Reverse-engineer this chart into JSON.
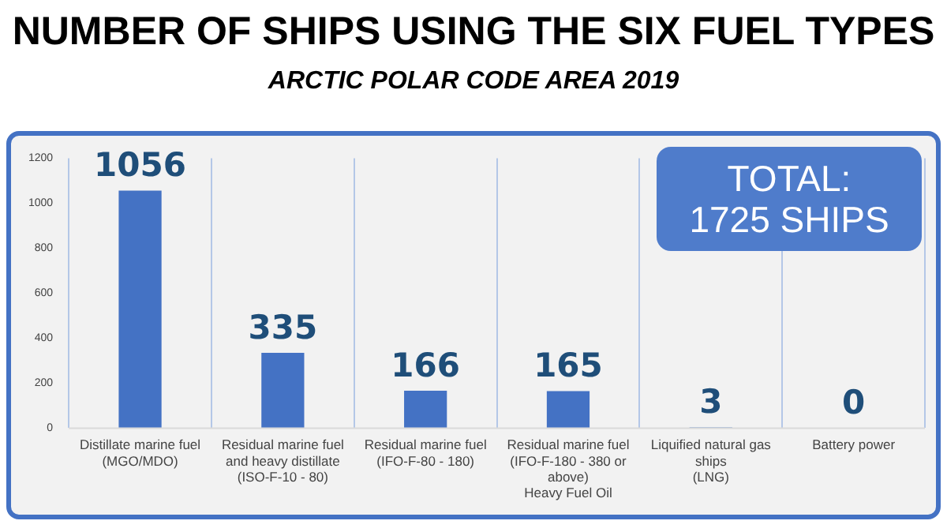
{
  "chart_data": {
    "type": "bar",
    "title": "NUMBER OF SHIPS USING THE SIX FUEL TYPES",
    "subtitle": "ARCTIC POLAR CODE AREA 2019",
    "categories": [
      "Distillate marine fuel\n(MGO/MDO)",
      "Residual marine fuel\nand heavy distillate\n(ISO-F-10 - 80)",
      "Residual marine fuel\n(IFO-F-80 - 180)",
      "Residual marine fuel\n(IFO-F-180 - 380 or\nabove)\nHeavy Fuel Oil",
      "Liquified natural gas\nships\n(LNG)",
      "Battery power"
    ],
    "values": [
      1056,
      335,
      166,
      165,
      3,
      0
    ],
    "color": "#4472c4",
    "ylim": [
      0,
      1200
    ],
    "yticks": [
      0,
      200,
      400,
      600,
      800,
      1000,
      1200
    ],
    "grid": "x",
    "legend": false,
    "data_labels": true,
    "annotations": [
      "TOTAL:\n1725 SHIPS"
    ]
  }
}
